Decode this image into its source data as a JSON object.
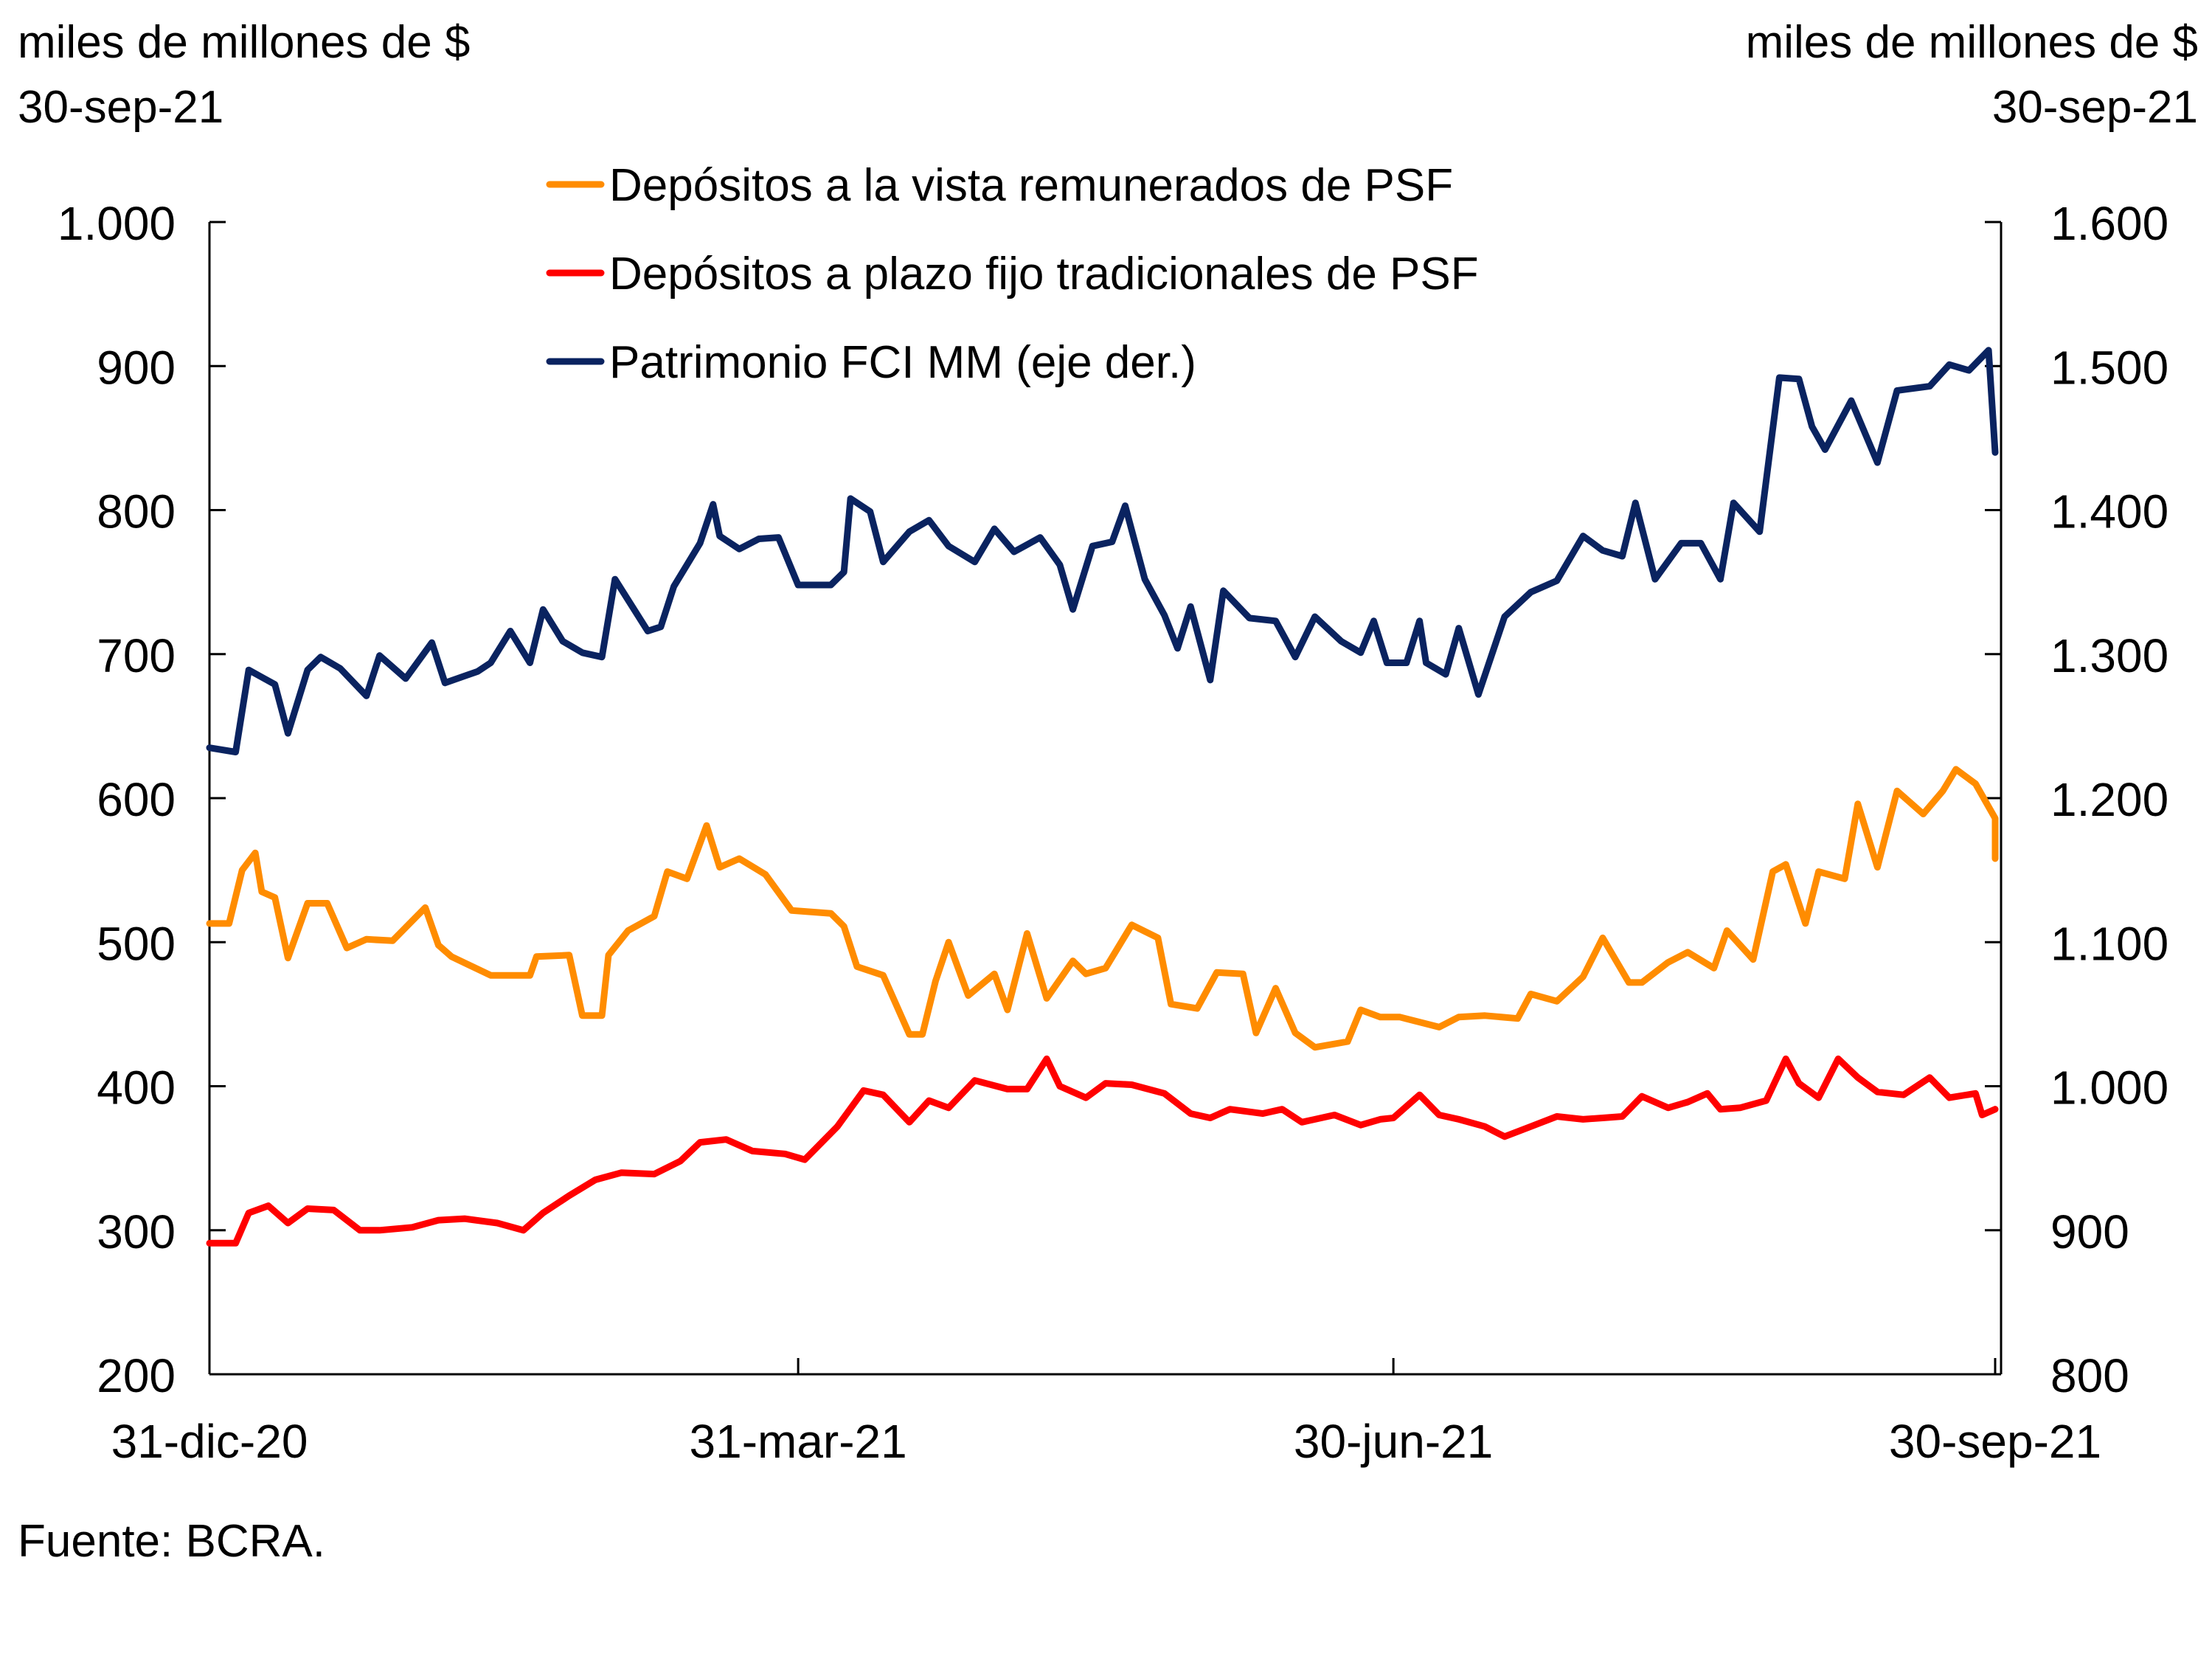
{
  "chart_data": {
    "type": "line",
    "title": "",
    "left_axis": {
      "unit_label": "miles de millones de $",
      "unit_date": "30-sep-21",
      "ylim": [
        200,
        1000
      ],
      "ticks": [
        200,
        300,
        400,
        500,
        600,
        700,
        800,
        900,
        1000
      ],
      "tick_labels": [
        "200",
        "300",
        "400",
        "500",
        "600",
        "700",
        "800",
        "900",
        "1.000"
      ]
    },
    "right_axis": {
      "unit_label": "miles de millones de $",
      "unit_date": "30-sep-21",
      "ylim": [
        800,
        1600
      ],
      "ticks": [
        800,
        900,
        1000,
        1100,
        1200,
        1300,
        1400,
        1500,
        1600
      ],
      "tick_labels": [
        "800",
        "900",
        "1.000",
        "1.100",
        "1.200",
        "1.300",
        "1.400",
        "1.500",
        "1.600"
      ]
    },
    "x_axis": {
      "type": "date",
      "x_unit": "days since 31-dic-20",
      "xlim": [
        0,
        273
      ],
      "ticks": [
        0,
        90,
        181,
        273
      ],
      "tick_labels": [
        "31-dic-20",
        "31-mar-21",
        "30-jun-21",
        "30-sep-21"
      ]
    },
    "legend_position": "top-center",
    "series": [
      {
        "name": "Depósitos a la vista remunerados de PSF",
        "axis": "left",
        "color": "#FF8C00",
        "points": [
          [
            0,
            513
          ],
          [
            3,
            513
          ],
          [
            5,
            550
          ],
          [
            7,
            562
          ],
          [
            8,
            535
          ],
          [
            10,
            531
          ],
          [
            12,
            489
          ],
          [
            15,
            527
          ],
          [
            18,
            527
          ],
          [
            21,
            496
          ],
          [
            24,
            502
          ],
          [
            28,
            501
          ],
          [
            33,
            524
          ],
          [
            35,
            498
          ],
          [
            37,
            490
          ],
          [
            43,
            477
          ],
          [
            49,
            477
          ],
          [
            50,
            490
          ],
          [
            55,
            491
          ],
          [
            57,
            449
          ],
          [
            60,
            449
          ],
          [
            61,
            491
          ],
          [
            64,
            508
          ],
          [
            68,
            518
          ],
          [
            70,
            549
          ],
          [
            73,
            544
          ],
          [
            76,
            581
          ],
          [
            78,
            552
          ],
          [
            81,
            558
          ],
          [
            85,
            547
          ],
          [
            89,
            522
          ],
          [
            95,
            520
          ],
          [
            97,
            511
          ],
          [
            99,
            483
          ],
          [
            103,
            477
          ],
          [
            107,
            436
          ],
          [
            109,
            436
          ],
          [
            111,
            473
          ],
          [
            113,
            500
          ],
          [
            116,
            463
          ],
          [
            120,
            478
          ],
          [
            122,
            453
          ],
          [
            125,
            506
          ],
          [
            128,
            461
          ],
          [
            132,
            487
          ],
          [
            134,
            478
          ],
          [
            137,
            482
          ],
          [
            141,
            512
          ],
          [
            145,
            503
          ],
          [
            147,
            457
          ],
          [
            151,
            454
          ],
          [
            154,
            479
          ],
          [
            158,
            478
          ],
          [
            160,
            437
          ],
          [
            163,
            468
          ],
          [
            166,
            437
          ],
          [
            169,
            427
          ],
          [
            174,
            431
          ],
          [
            176,
            453
          ],
          [
            179,
            448
          ],
          [
            182,
            448
          ],
          [
            188,
            441
          ],
          [
            191,
            448
          ],
          [
            195,
            449
          ],
          [
            200,
            447
          ],
          [
            202,
            464
          ],
          [
            206,
            459
          ],
          [
            210,
            476
          ],
          [
            213,
            503
          ],
          [
            217,
            472
          ],
          [
            219,
            472
          ],
          [
            223,
            486
          ],
          [
            226,
            493
          ],
          [
            230,
            482
          ],
          [
            232,
            508
          ],
          [
            236,
            488
          ],
          [
            239,
            549
          ],
          [
            241,
            554
          ],
          [
            244,
            513
          ],
          [
            246,
            549
          ],
          [
            250,
            544
          ],
          [
            252,
            596
          ],
          [
            255,
            552
          ],
          [
            258,
            605
          ],
          [
            262,
            589
          ],
          [
            265,
            605
          ],
          [
            267,
            620
          ],
          [
            270,
            610
          ],
          [
            273,
            586
          ],
          [
            273,
            558
          ]
        ]
      },
      {
        "name": "Depósitos a plazo fijo tradicionales de PSF",
        "axis": "left",
        "color": "#FF0000",
        "points": [
          [
            0,
            291
          ],
          [
            4,
            291
          ],
          [
            6,
            312
          ],
          [
            9,
            317
          ],
          [
            12,
            305
          ],
          [
            15,
            315
          ],
          [
            19,
            314
          ],
          [
            23,
            300
          ],
          [
            26,
            300
          ],
          [
            31,
            302
          ],
          [
            35,
            307
          ],
          [
            39,
            308
          ],
          [
            44,
            305
          ],
          [
            48,
            300
          ],
          [
            51,
            312
          ],
          [
            55,
            324
          ],
          [
            59,
            335
          ],
          [
            63,
            340
          ],
          [
            68,
            339
          ],
          [
            72,
            348
          ],
          [
            75,
            361
          ],
          [
            79,
            363
          ],
          [
            83,
            355
          ],
          [
            88,
            353
          ],
          [
            91,
            349
          ],
          [
            96,
            372
          ],
          [
            100,
            397
          ],
          [
            103,
            394
          ],
          [
            107,
            375
          ],
          [
            110,
            390
          ],
          [
            113,
            385
          ],
          [
            117,
            404
          ],
          [
            122,
            398
          ],
          [
            125,
            398
          ],
          [
            128,
            419
          ],
          [
            130,
            400
          ],
          [
            134,
            392
          ],
          [
            137,
            402
          ],
          [
            141,
            401
          ],
          [
            146,
            395
          ],
          [
            150,
            381
          ],
          [
            153,
            378
          ],
          [
            156,
            384
          ],
          [
            161,
            381
          ],
          [
            164,
            384
          ],
          [
            167,
            375
          ],
          [
            172,
            380
          ],
          [
            176,
            373
          ],
          [
            179,
            377
          ],
          [
            181,
            378
          ],
          [
            185,
            394
          ],
          [
            188,
            380
          ],
          [
            191,
            377
          ],
          [
            195,
            372
          ],
          [
            198,
            365
          ],
          [
            202,
            372
          ],
          [
            206,
            379
          ],
          [
            210,
            377
          ],
          [
            213,
            378
          ],
          [
            216,
            379
          ],
          [
            219,
            393
          ],
          [
            223,
            385
          ],
          [
            226,
            389
          ],
          [
            229,
            395
          ],
          [
            231,
            384
          ],
          [
            234,
            385
          ],
          [
            238,
            390
          ],
          [
            241,
            419
          ],
          [
            243,
            402
          ],
          [
            246,
            392
          ],
          [
            249,
            419
          ],
          [
            252,
            406
          ],
          [
            255,
            396
          ],
          [
            259,
            394
          ],
          [
            263,
            406
          ],
          [
            266,
            392
          ],
          [
            270,
            395
          ],
          [
            271,
            380
          ],
          [
            273,
            384
          ]
        ]
      },
      {
        "name": "Patrimonio FCI MM (eje der.)",
        "axis": "right",
        "color": "#0A2360",
        "points": [
          [
            0,
            1235
          ],
          [
            4,
            1232
          ],
          [
            6,
            1289
          ],
          [
            8,
            1284
          ],
          [
            10,
            1279
          ],
          [
            12,
            1245
          ],
          [
            15,
            1289
          ],
          [
            17,
            1298
          ],
          [
            20,
            1290
          ],
          [
            24,
            1271
          ],
          [
            26,
            1299
          ],
          [
            30,
            1283
          ],
          [
            34,
            1308
          ],
          [
            36,
            1280
          ],
          [
            41,
            1288
          ],
          [
            43,
            1294
          ],
          [
            46,
            1316
          ],
          [
            49,
            1294
          ],
          [
            51,
            1331
          ],
          [
            54,
            1309
          ],
          [
            57,
            1301
          ],
          [
            60,
            1298
          ],
          [
            62,
            1352
          ],
          [
            67,
            1316
          ],
          [
            69,
            1319
          ],
          [
            71,
            1347
          ],
          [
            73,
            1362
          ],
          [
            75,
            1377
          ],
          [
            77,
            1404
          ],
          [
            78,
            1382
          ],
          [
            81,
            1373
          ],
          [
            84,
            1380
          ],
          [
            87,
            1381
          ],
          [
            90,
            1348
          ],
          [
            95,
            1348
          ],
          [
            97,
            1357
          ],
          [
            98,
            1408
          ],
          [
            101,
            1399
          ],
          [
            103,
            1364
          ],
          [
            107,
            1385
          ],
          [
            110,
            1393
          ],
          [
            113,
            1375
          ],
          [
            117,
            1364
          ],
          [
            120,
            1387
          ],
          [
            123,
            1371
          ],
          [
            127,
            1381
          ],
          [
            130,
            1362
          ],
          [
            132,
            1331
          ],
          [
            135,
            1375
          ],
          [
            138,
            1378
          ],
          [
            140,
            1403
          ],
          [
            143,
            1352
          ],
          [
            146,
            1327
          ],
          [
            148,
            1304
          ],
          [
            150,
            1333
          ],
          [
            153,
            1282
          ],
          [
            155,
            1344
          ],
          [
            159,
            1325
          ],
          [
            163,
            1323
          ],
          [
            166,
            1298
          ],
          [
            169,
            1326
          ],
          [
            173,
            1309
          ],
          [
            176,
            1301
          ],
          [
            178,
            1323
          ],
          [
            180,
            1294
          ],
          [
            183,
            1294
          ],
          [
            185,
            1323
          ],
          [
            186,
            1294
          ],
          [
            189,
            1286
          ],
          [
            191,
            1318
          ],
          [
            194,
            1272
          ],
          [
            198,
            1326
          ],
          [
            202,
            1343
          ],
          [
            206,
            1351
          ],
          [
            210,
            1382
          ],
          [
            213,
            1372
          ],
          [
            216,
            1368
          ],
          [
            218,
            1405
          ],
          [
            221,
            1352
          ],
          [
            225,
            1377
          ],
          [
            228,
            1377
          ],
          [
            231,
            1352
          ],
          [
            233,
            1405
          ],
          [
            237,
            1385
          ],
          [
            240,
            1492
          ],
          [
            243,
            1491
          ],
          [
            245,
            1458
          ],
          [
            247,
            1442
          ],
          [
            251,
            1476
          ],
          [
            255,
            1433
          ],
          [
            258,
            1483
          ],
          [
            263,
            1486
          ],
          [
            266,
            1501
          ],
          [
            269,
            1497
          ],
          [
            272,
            1511
          ],
          [
            273,
            1440
          ]
        ]
      }
    ]
  },
  "header": {
    "left_unit": "miles de millones de $",
    "left_date": "30-sep-21",
    "right_unit": "miles de millones de $",
    "right_date": "30-sep-21"
  },
  "legend": [
    {
      "label": "Depósitos a la vista remunerados de PSF",
      "color": "#FF8C00"
    },
    {
      "label": "Depósitos a plazo fijo tradicionales de PSF",
      "color": "#FF0000"
    },
    {
      "label": "Patrimonio FCI MM (eje der.)",
      "color": "#0A2360"
    }
  ],
  "footer": {
    "source": "Fuente: BCRA."
  }
}
